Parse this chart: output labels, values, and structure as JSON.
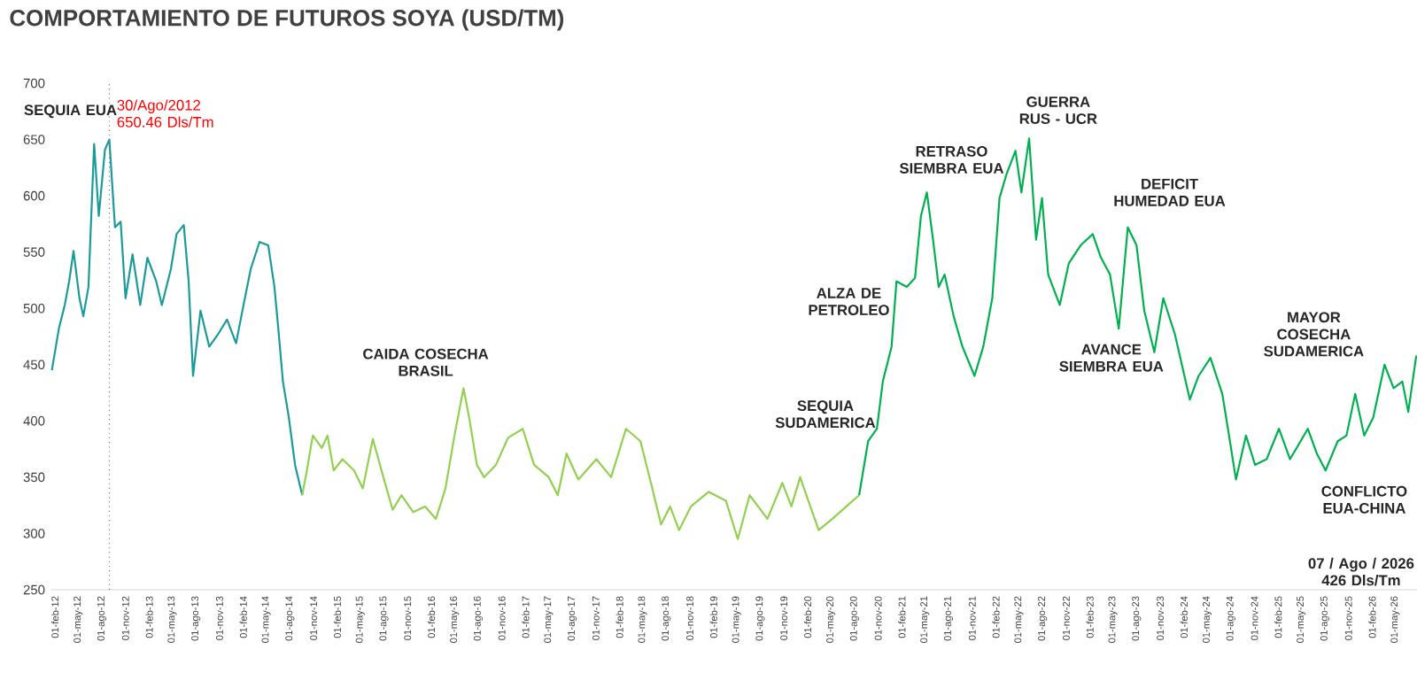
{
  "chart_data": {
    "type": "line",
    "title": "COMPORTAMIENTO DE FUTUROS SOYA (USD/TM)",
    "xlim": [
      "2012-01-18",
      "2026-07-25"
    ],
    "xticks": [
      {
        "value": "2012-02-01",
        "label": "01-feb-12"
      },
      {
        "value": "2012-05-01",
        "label": "01-may-12"
      },
      {
        "value": "2012-08-01",
        "label": "01-ago-12"
      },
      {
        "value": "2012-11-01",
        "label": "01-nov-12"
      },
      {
        "value": "2013-02-01",
        "label": "01-feb-13"
      },
      {
        "value": "2013-05-01",
        "label": "01-may-13"
      },
      {
        "value": "2013-08-01",
        "label": "01-ago-13"
      },
      {
        "value": "2013-11-01",
        "label": "01-nov-13"
      },
      {
        "value": "2014-02-01",
        "label": "01-feb-14"
      },
      {
        "value": "2014-05-01",
        "label": "01-may-14"
      },
      {
        "value": "2014-08-01",
        "label": "01-ago-14"
      },
      {
        "value": "2014-11-01",
        "label": "01-nov-14"
      },
      {
        "value": "2015-02-01",
        "label": "01-feb-15"
      },
      {
        "value": "2015-05-01",
        "label": "01-may-15"
      },
      {
        "value": "2015-08-01",
        "label": "01-ago-15"
      },
      {
        "value": "2015-11-01",
        "label": "01-nov-15"
      },
      {
        "value": "2016-02-01",
        "label": "01-feb-16"
      },
      {
        "value": "2016-05-01",
        "label": "01-may-16"
      },
      {
        "value": "2016-08-01",
        "label": "01-ago-16"
      },
      {
        "value": "2016-11-01",
        "label": "01-nov-16"
      },
      {
        "value": "2017-02-01",
        "label": "01-feb-17"
      },
      {
        "value": "2017-05-01",
        "label": "01-may-17"
      },
      {
        "value": "2017-08-01",
        "label": "01-ago-17"
      },
      {
        "value": "2017-11-01",
        "label": "01-nov-17"
      },
      {
        "value": "2018-02-01",
        "label": "01-feb-18"
      },
      {
        "value": "2018-05-01",
        "label": "01-may-18"
      },
      {
        "value": "2018-08-01",
        "label": "01-ago-18"
      },
      {
        "value": "2018-11-01",
        "label": "01-nov-18"
      },
      {
        "value": "2019-02-01",
        "label": "01-feb-19"
      },
      {
        "value": "2019-05-01",
        "label": "01-may-19"
      },
      {
        "value": "2019-08-01",
        "label": "01-ago-19"
      },
      {
        "value": "2019-11-01",
        "label": "01-nov-19"
      },
      {
        "value": "2020-02-01",
        "label": "01-feb-20"
      },
      {
        "value": "2020-05-01",
        "label": "01-may-20"
      },
      {
        "value": "2020-08-01",
        "label": "01-ago-20"
      },
      {
        "value": "2020-11-01",
        "label": "01-nov-20"
      },
      {
        "value": "2021-02-01",
        "label": "01-feb-21"
      },
      {
        "value": "2021-05-01",
        "label": "01-may-21"
      },
      {
        "value": "2021-08-01",
        "label": "01-ago-21"
      },
      {
        "value": "2021-11-01",
        "label": "01-nov-21"
      },
      {
        "value": "2022-02-01",
        "label": "01-feb-22"
      },
      {
        "value": "2022-05-01",
        "label": "01-may-22"
      },
      {
        "value": "2022-08-01",
        "label": "01-ago-22"
      },
      {
        "value": "2022-11-01",
        "label": "01-nov-22"
      },
      {
        "value": "2023-02-01",
        "label": "01-feb-23"
      },
      {
        "value": "2023-05-01",
        "label": "01-may-23"
      },
      {
        "value": "2023-08-01",
        "label": "01-ago-23"
      },
      {
        "value": "2023-11-01",
        "label": "01-nov-23"
      },
      {
        "value": "2024-02-01",
        "label": "01-feb-24"
      },
      {
        "value": "2024-05-01",
        "label": "01-may-24"
      },
      {
        "value": "2024-08-01",
        "label": "01-ago-24"
      },
      {
        "value": "2024-11-01",
        "label": "01-nov-24"
      },
      {
        "value": "2025-02-01",
        "label": "01-feb-25"
      },
      {
        "value": "2025-05-01",
        "label": "01-may-25"
      },
      {
        "value": "2025-08-01",
        "label": "01-ago-25"
      },
      {
        "value": "2025-11-01",
        "label": "01-nov-25"
      },
      {
        "value": "2026-02-01",
        "label": "01-feb-26"
      },
      {
        "value": "2026-05-01",
        "label": "01-may-26"
      }
    ],
    "ylim": [
      250,
      700
    ],
    "yticks": [
      250,
      300,
      350,
      400,
      450,
      500,
      550,
      600,
      650,
      700
    ],
    "series": [
      {
        "color": "#1a9a9a",
        "x": [
          "2012-01-20",
          "2012-02-16",
          "2012-03-10",
          "2012-03-27",
          "2012-04-13",
          "2012-05-06",
          "2012-05-21",
          "2012-06-10",
          "2012-07-02",
          "2012-07-20",
          "2012-08-13",
          "2012-08-30",
          "2012-09-21",
          "2012-10-13",
          "2012-11-01",
          "2012-11-28",
          "2012-12-28",
          "2013-01-25",
          "2013-02-28",
          "2013-03-22",
          "2013-04-26",
          "2013-05-18",
          "2013-06-15",
          "2013-07-04",
          "2013-07-21",
          "2013-08-19",
          "2013-09-22",
          "2013-10-26",
          "2013-11-30",
          "2014-01-04",
          "2014-02-02",
          "2014-03-02",
          "2014-04-05",
          "2014-05-09",
          "2014-06-02",
          "2014-06-17",
          "2014-07-05",
          "2014-07-28",
          "2014-08-21",
          "2014-09-18"
        ],
        "values": [
          445,
          482,
          503,
          524,
          551,
          509,
          493,
          519,
          646,
          582,
          641,
          650,
          572,
          577,
          509,
          548,
          503,
          545,
          524,
          503,
          535,
          566,
          574,
          524,
          440,
          498,
          466,
          477,
          490,
          469,
          503,
          535,
          559,
          556,
          519,
          482,
          435,
          403,
          361,
          334
        ]
      },
      {
        "color": "#92d050",
        "x": [
          "2014-09-18",
          "2014-10-06",
          "2014-10-29",
          "2014-12-03",
          "2014-12-25",
          "2015-01-18",
          "2015-02-21",
          "2015-04-07",
          "2015-05-11",
          "2015-06-19",
          "2015-07-30",
          "2015-09-04",
          "2015-10-08",
          "2015-11-23",
          "2016-01-08",
          "2016-02-19",
          "2016-03-27",
          "2016-05-01",
          "2016-06-05",
          "2016-06-27",
          "2016-07-27",
          "2016-08-24",
          "2016-10-09",
          "2016-11-25",
          "2017-01-21",
          "2017-03-06",
          "2017-05-02",
          "2017-06-06",
          "2017-07-10",
          "2017-08-25",
          "2017-11-03",
          "2017-12-30",
          "2018-02-26",
          "2018-04-23",
          "2018-06-08",
          "2018-07-12",
          "2018-08-16",
          "2018-09-20",
          "2018-11-05",
          "2019-01-13",
          "2019-03-21",
          "2019-05-06",
          "2019-06-21",
          "2019-08-29",
          "2019-10-26",
          "2019-11-30",
          "2020-01-03",
          "2020-02-07",
          "2020-03-15",
          "2020-05-07",
          "2020-07-15",
          "2020-08-19"
        ],
        "values": [
          334,
          356,
          387,
          376,
          387,
          356,
          366,
          356,
          340,
          384,
          350,
          321,
          334,
          319,
          324,
          313,
          340,
          387,
          429,
          403,
          361,
          350,
          361,
          385,
          393,
          361,
          350,
          334,
          371,
          348,
          366,
          350,
          393,
          382,
          340,
          308,
          324,
          303,
          324,
          337,
          329,
          295,
          334,
          313,
          345,
          324,
          350,
          327,
          303,
          313,
          327,
          334
        ]
      },
      {
        "color": "#00b050",
        "x": [
          "2020-08-19",
          "2020-09-23",
          "2020-10-27",
          "2020-11-19",
          "2020-12-23",
          "2021-01-11",
          "2021-02-20",
          "2021-03-24",
          "2021-04-16",
          "2021-05-09",
          "2021-06-02",
          "2021-06-24",
          "2021-07-17",
          "2021-08-21",
          "2021-09-24",
          "2021-11-10",
          "2021-12-14",
          "2022-01-18",
          "2022-02-15",
          "2022-03-14",
          "2022-04-18",
          "2022-05-11",
          "2022-06-10",
          "2022-07-07",
          "2022-07-30",
          "2022-08-23",
          "2022-10-07",
          "2022-11-11",
          "2022-12-27",
          "2023-02-12",
          "2023-03-16",
          "2023-04-20",
          "2023-05-24",
          "2023-06-28",
          "2023-08-01",
          "2023-08-31",
          "2023-10-09",
          "2023-11-13",
          "2023-12-28",
          "2024-02-24",
          "2024-03-29",
          "2024-05-14",
          "2024-06-29",
          "2024-07-21",
          "2024-08-21",
          "2024-09-29",
          "2024-11-03",
          "2024-12-18",
          "2025-02-04",
          "2025-03-19",
          "2025-05-27",
          "2025-07-01",
          "2025-08-04",
          "2025-09-20",
          "2025-10-24",
          "2025-11-27",
          "2026-01-01",
          "2026-02-05",
          "2026-03-21",
          "2026-04-25",
          "2026-05-29",
          "2026-06-21",
          "2026-07-22"
        ],
        "values": [
          334,
          382,
          393,
          435,
          466,
          524,
          519,
          527,
          582,
          603,
          561,
          519,
          530,
          493,
          466,
          440,
          466,
          509,
          598,
          619,
          640,
          603,
          651,
          561,
          598,
          530,
          503,
          540,
          556,
          566,
          545,
          530,
          482,
          572,
          556,
          498,
          461,
          509,
          477,
          419,
          440,
          456,
          424,
          393,
          348,
          387,
          361,
          366,
          393,
          366,
          393,
          371,
          356,
          382,
          387,
          424,
          387,
          403,
          450,
          429,
          435,
          408,
          458
        ]
      }
    ],
    "ref_lines": [
      {
        "axis": "x",
        "value": "2012-08-30",
        "label": "30/Ago/2012 650.46 Dls/Tm",
        "color": "#808080",
        "line_style": "dotted"
      }
    ],
    "annotations": [
      "SEQUIA EUA",
      "CAIDA COSECHA BRASIL",
      "SEQUIA SUDAMERICA",
      "ALZA DE PETROLEO",
      "RETRASO SIEMBRA EUA",
      "GUERRA RUS - UCR",
      "DEFICIT HUMEDAD EUA",
      "AVANCE SIEMBRA EUA",
      "MAYOR COSECHA SUDAMERICA",
      "CONFLICTO EUA-CHINA",
      "07 / Ago / 2026 426 Dls/Tm"
    ]
  }
}
